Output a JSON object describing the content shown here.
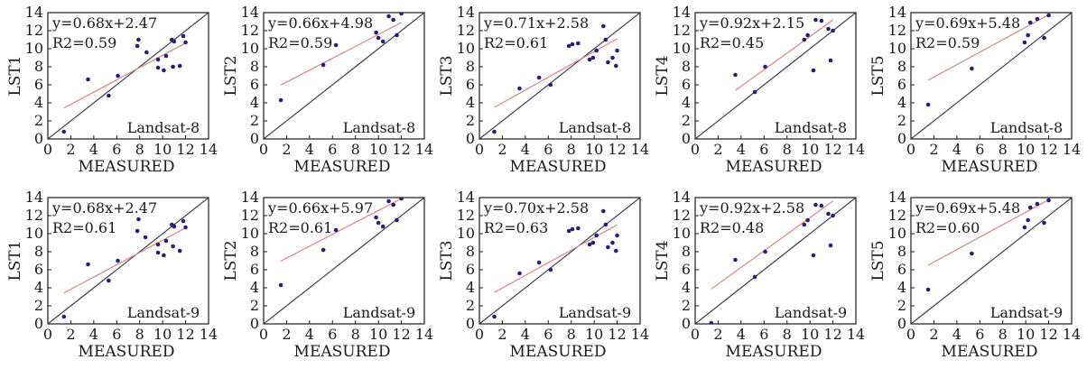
{
  "colors": {
    "frame": "#1a1a1a",
    "identity_line": "#2f3545",
    "fit_line": "#c98a8a",
    "points": "#2a1f6e"
  },
  "chart_data": [
    {
      "type": "scatter",
      "ylabel": "LST1",
      "xlabel": "MEASURED",
      "equation": "y=0.68x+2.47",
      "r2": "R2=0.59",
      "satellite": "Landsat-8",
      "xlim": [
        0,
        14
      ],
      "ylim": [
        0,
        14
      ],
      "fit": {
        "slope": 0.68,
        "intercept": 2.47
      },
      "points": [
        [
          1.4,
          0.8
        ],
        [
          3.5,
          6.6
        ],
        [
          5.3,
          4.8
        ],
        [
          6.1,
          7.0
        ],
        [
          7.8,
          10.3
        ],
        [
          7.9,
          11.0
        ],
        [
          8.6,
          9.6
        ],
        [
          9.6,
          7.9
        ],
        [
          9.6,
          8.8
        ],
        [
          10.1,
          7.6
        ],
        [
          10.3,
          9.2
        ],
        [
          10.8,
          11.0
        ],
        [
          10.9,
          8.0
        ],
        [
          11.0,
          10.8
        ],
        [
          11.5,
          8.1
        ],
        [
          11.8,
          11.4
        ],
        [
          12.0,
          10.7
        ]
      ]
    },
    {
      "type": "scatter",
      "ylabel": "LST2",
      "xlabel": "MEASURED",
      "equation": "y=0.66x+4.98",
      "r2": "R2=0.59",
      "satellite": "Landsat-8",
      "xlim": [
        0,
        14
      ],
      "ylim": [
        0,
        14
      ],
      "fit": {
        "slope": 0.66,
        "intercept": 4.98
      },
      "points": [
        [
          1.5,
          4.3
        ],
        [
          5.2,
          8.2
        ],
        [
          6.3,
          10.4
        ],
        [
          9.8,
          11.8
        ],
        [
          10.0,
          11.2
        ],
        [
          10.4,
          10.8
        ],
        [
          10.9,
          13.6
        ],
        [
          11.3,
          13.2
        ],
        [
          11.6,
          11.5
        ],
        [
          12.0,
          13.9
        ]
      ]
    },
    {
      "type": "scatter",
      "ylabel": "LST3",
      "xlabel": "MEASURED",
      "equation": "y=0.71x+2.58",
      "r2": "R2=0.61",
      "satellite": "Landsat-8",
      "xlim": [
        0,
        14
      ],
      "ylim": [
        0,
        14
      ],
      "fit": {
        "slope": 0.71,
        "intercept": 2.58
      },
      "points": [
        [
          1.3,
          0.8
        ],
        [
          3.5,
          5.6
        ],
        [
          5.2,
          6.8
        ],
        [
          6.2,
          6.0
        ],
        [
          7.8,
          10.3
        ],
        [
          8.1,
          10.5
        ],
        [
          8.6,
          10.6
        ],
        [
          9.6,
          8.8
        ],
        [
          9.9,
          9.0
        ],
        [
          10.2,
          9.8
        ],
        [
          10.8,
          12.5
        ],
        [
          11.0,
          11.0
        ],
        [
          11.2,
          8.5
        ],
        [
          11.6,
          9.0
        ],
        [
          11.9,
          8.1
        ],
        [
          12.0,
          9.8
        ]
      ]
    },
    {
      "type": "scatter",
      "ylabel": "LST4",
      "xlabel": "MEASURED",
      "equation": "y=0.92x+2.15",
      "r2": "R2=0.45",
      "satellite": "Landsat-8",
      "xlim": [
        0,
        14
      ],
      "ylim": [
        0,
        14
      ],
      "fit": {
        "slope": 0.92,
        "intercept": 2.15
      },
      "points": [
        [
          3.5,
          7.1
        ],
        [
          5.2,
          5.2
        ],
        [
          6.1,
          8.0
        ],
        [
          9.5,
          11.0
        ],
        [
          9.8,
          11.5
        ],
        [
          10.3,
          7.6
        ],
        [
          10.5,
          13.2
        ],
        [
          11.0,
          13.1
        ],
        [
          11.6,
          12.2
        ],
        [
          11.8,
          8.7
        ],
        [
          12.0,
          12.0
        ]
      ]
    },
    {
      "type": "scatter",
      "ylabel": "LST5",
      "xlabel": "MEASURED",
      "equation": "y=0.69x+5.48",
      "r2": "R2=0.59",
      "satellite": "Landsat-8",
      "xlim": [
        0,
        14
      ],
      "ylim": [
        0,
        14
      ],
      "fit": {
        "slope": 0.69,
        "intercept": 5.48
      },
      "points": [
        [
          1.5,
          3.8
        ],
        [
          5.3,
          7.8
        ],
        [
          9.9,
          10.7
        ],
        [
          10.2,
          11.5
        ],
        [
          10.4,
          12.9
        ],
        [
          11.0,
          13.3
        ],
        [
          11.6,
          11.2
        ],
        [
          12.0,
          13.7
        ]
      ]
    },
    {
      "type": "scatter",
      "ylabel": "LST1",
      "xlabel": "MEASURED",
      "equation": "y=0.68x+2.47",
      "r2": "R2=0.61",
      "satellite": "Landsat-9",
      "xlim": [
        0,
        14
      ],
      "ylim": [
        0,
        14
      ],
      "fit": {
        "slope": 0.68,
        "intercept": 2.47
      },
      "points": [
        [
          1.4,
          0.8
        ],
        [
          3.5,
          6.6
        ],
        [
          5.3,
          4.8
        ],
        [
          6.1,
          7.0
        ],
        [
          7.8,
          10.3
        ],
        [
          7.9,
          11.6
        ],
        [
          8.5,
          9.6
        ],
        [
          9.6,
          7.9
        ],
        [
          9.6,
          8.8
        ],
        [
          10.1,
          7.6
        ],
        [
          10.3,
          9.2
        ],
        [
          10.8,
          11.0
        ],
        [
          10.9,
          8.6
        ],
        [
          11.0,
          10.8
        ],
        [
          11.5,
          8.1
        ],
        [
          11.8,
          11.4
        ],
        [
          12.0,
          10.7
        ]
      ]
    },
    {
      "type": "scatter",
      "ylabel": "LST2",
      "xlabel": "MEASURED",
      "equation": "y=0.66x+5.97",
      "r2": "R2=0.61",
      "satellite": "Landsat-9",
      "xlim": [
        0,
        14
      ],
      "ylim": [
        0,
        14
      ],
      "fit": {
        "slope": 0.66,
        "intercept": 5.97
      },
      "points": [
        [
          1.5,
          4.3
        ],
        [
          5.2,
          8.2
        ],
        [
          6.3,
          10.4
        ],
        [
          9.8,
          11.8
        ],
        [
          10.0,
          11.2
        ],
        [
          10.4,
          10.8
        ],
        [
          10.9,
          13.6
        ],
        [
          11.3,
          13.2
        ],
        [
          11.6,
          11.5
        ],
        [
          12.0,
          13.9
        ]
      ]
    },
    {
      "type": "scatter",
      "ylabel": "LST3",
      "xlabel": "MEASURED",
      "equation": "y=0.70x+2.58",
      "r2": "R2=0.63",
      "satellite": "Landsat-9",
      "xlim": [
        0,
        14
      ],
      "ylim": [
        0,
        14
      ],
      "fit": {
        "slope": 0.7,
        "intercept": 2.58
      },
      "points": [
        [
          1.3,
          0.8
        ],
        [
          3.5,
          5.6
        ],
        [
          5.2,
          6.8
        ],
        [
          6.2,
          6.0
        ],
        [
          7.8,
          10.3
        ],
        [
          8.1,
          10.5
        ],
        [
          8.6,
          10.6
        ],
        [
          9.6,
          8.8
        ],
        [
          9.9,
          9.0
        ],
        [
          10.2,
          9.8
        ],
        [
          10.8,
          12.5
        ],
        [
          11.0,
          11.0
        ],
        [
          11.2,
          8.5
        ],
        [
          11.6,
          9.0
        ],
        [
          11.9,
          8.1
        ],
        [
          12.0,
          9.8
        ]
      ]
    },
    {
      "type": "scatter",
      "ylabel": "LST4",
      "xlabel": "MEASURED",
      "equation": "y=0.92x+2.58",
      "r2": "R2=0.48",
      "satellite": "Landsat-9",
      "xlim": [
        0,
        14
      ],
      "ylim": [
        0,
        14
      ],
      "fit": {
        "slope": 0.92,
        "intercept": 2.58
      },
      "points": [
        [
          1.4,
          0.1
        ],
        [
          3.5,
          7.1
        ],
        [
          5.2,
          5.2
        ],
        [
          6.1,
          8.0
        ],
        [
          9.5,
          11.0
        ],
        [
          9.8,
          11.5
        ],
        [
          10.3,
          7.6
        ],
        [
          10.5,
          13.2
        ],
        [
          11.0,
          13.1
        ],
        [
          11.6,
          12.2
        ],
        [
          11.8,
          8.7
        ],
        [
          12.0,
          12.0
        ]
      ]
    },
    {
      "type": "scatter",
      "ylabel": "LST5",
      "xlabel": "MEASURED",
      "equation": "y=0.69x+5.48",
      "r2": "R2=0.60",
      "satellite": "Landsat-9",
      "xlim": [
        0,
        14
      ],
      "ylim": [
        0,
        14
      ],
      "fit": {
        "slope": 0.69,
        "intercept": 5.48
      },
      "points": [
        [
          1.5,
          3.8
        ],
        [
          5.3,
          7.8
        ],
        [
          9.9,
          10.7
        ],
        [
          10.2,
          11.5
        ],
        [
          10.4,
          12.9
        ],
        [
          11.0,
          13.3
        ],
        [
          11.6,
          11.2
        ],
        [
          12.0,
          13.7
        ]
      ]
    }
  ]
}
